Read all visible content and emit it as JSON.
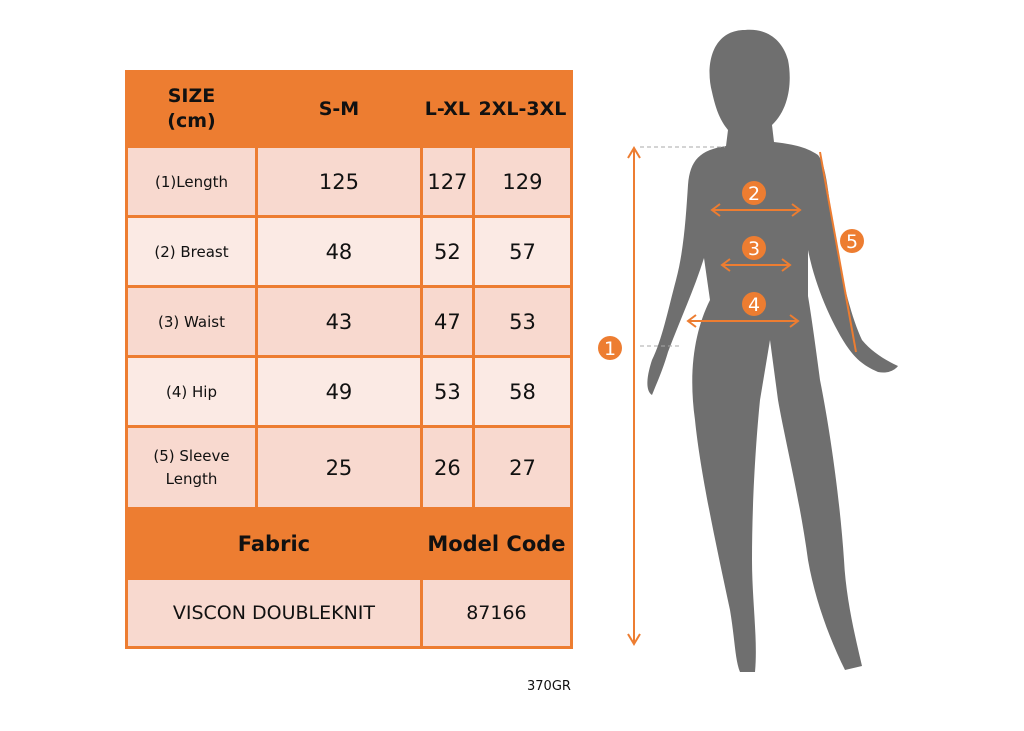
{
  "table": {
    "header": [
      "SIZE\n(cm)",
      "S-M",
      "L-XL",
      "2XL-3XL"
    ],
    "rows": [
      {
        "label": "(1)Length",
        "values": [
          "125",
          "127",
          "129"
        ]
      },
      {
        "label": "(2) Breast",
        "values": [
          "48",
          "52",
          "57"
        ]
      },
      {
        "label": "(3) Waist",
        "values": [
          "43",
          "47",
          "53"
        ]
      },
      {
        "label": "(4) Hip",
        "values": [
          "49",
          "53",
          "58"
        ]
      },
      {
        "label": "(5) Sleeve Length",
        "values": [
          "25",
          "26",
          "27"
        ]
      }
    ],
    "fabric_label": "Fabric",
    "model_code_label": "Model Code",
    "fabric_value": "VISCON DOUBLEKNIT",
    "model_code_value": "87166"
  },
  "weight": "370GR",
  "figure": {
    "markers": [
      "1",
      "2",
      "3",
      "4",
      "5"
    ]
  },
  "colors": {
    "accent": "#ed7d31",
    "row_dark": "#f8d9cf",
    "row_light": "#fbeae4",
    "silhouette": "#6f6f6f"
  }
}
